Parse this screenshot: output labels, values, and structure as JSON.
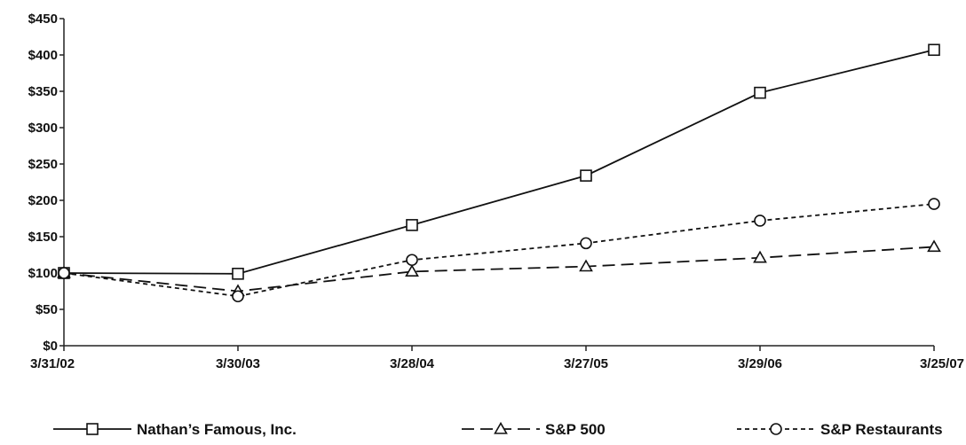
{
  "chart_data": {
    "type": "line",
    "x": [
      "3/31/02",
      "3/30/03",
      "3/28/04",
      "3/27/05",
      "3/29/06",
      "3/25/07"
    ],
    "y_ticks": [
      "$0",
      "$50",
      "$100",
      "$150",
      "$200",
      "$250",
      "$300",
      "$350",
      "$400",
      "$450"
    ],
    "ylim": [
      0,
      450
    ],
    "grid": false,
    "legend_position": "bottom",
    "series": [
      {
        "name": "Nathan’s Famous, Inc.",
        "values": [
          100,
          99,
          166,
          234,
          348,
          407
        ],
        "line_style": "solid",
        "marker": "square",
        "color": "#111111"
      },
      {
        "name": "S&P 500",
        "values": [
          100,
          75,
          102,
          109,
          121,
          136
        ],
        "line_style": "long-dash",
        "marker": "triangle",
        "color": "#111111"
      },
      {
        "name": "S&P Restaurants",
        "values": [
          100,
          68,
          118,
          141,
          172,
          195
        ],
        "line_style": "short-dash",
        "marker": "circle",
        "color": "#111111"
      }
    ]
  }
}
